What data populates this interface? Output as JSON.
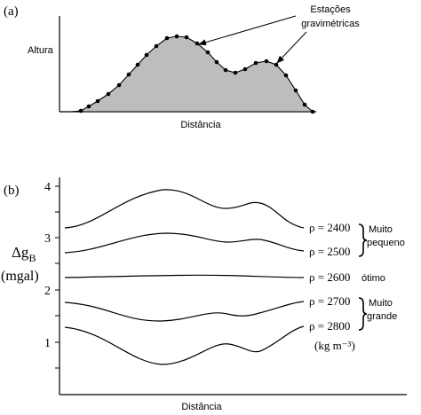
{
  "panel_a": {
    "label": "(a)",
    "y_label": "Altura",
    "x_label": "Distância",
    "annotation_line1": "Estações",
    "annotation_line2": "gravimétricas"
  },
  "panel_b": {
    "label": "(b)",
    "y_label_main": "Δg",
    "y_label_sub": "B",
    "y_label_unit": "(mgal)",
    "x_label": "Distância",
    "y_ticks": [
      "1",
      "2",
      "3",
      "4"
    ],
    "curves": [
      {
        "label": "ρ = 2400"
      },
      {
        "label": "ρ = 2500"
      },
      {
        "label": "ρ = 2600"
      },
      {
        "label": "ρ = 2700"
      },
      {
        "label": "ρ = 2800"
      }
    ],
    "bracket_top_line1": "Muito",
    "bracket_top_line2": "pequeno",
    "optimal_label": "ótimo",
    "bracket_bottom_line1": "Muito",
    "bracket_bottom_line2": "grande",
    "units_label": "(kg m⁻³)"
  }
}
